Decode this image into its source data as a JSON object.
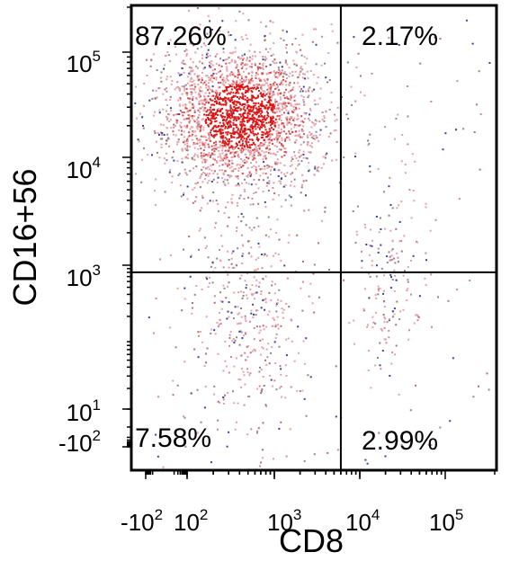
{
  "chart_data": {
    "type": "scatter",
    "title": "",
    "xlabel": "CD8",
    "ylabel": "CD16+56",
    "x_scale": "biexponential",
    "y_scale": "biexponential",
    "xlim": [
      -200,
      200000
    ],
    "ylim": [
      -200,
      200000
    ],
    "x_ticks": [
      {
        "base": "-10",
        "exp": "2",
        "value": -100
      },
      {
        "base": "10",
        "exp": "2",
        "value": 100
      },
      {
        "base": "10",
        "exp": "3",
        "value": 1000
      },
      {
        "base": "10",
        "exp": "4",
        "value": 10000
      },
      {
        "base": "10",
        "exp": "5",
        "value": 100000
      }
    ],
    "y_ticks": [
      {
        "base": "10",
        "exp": "5",
        "value": 100000
      },
      {
        "base": "10",
        "exp": "4",
        "value": 10000
      },
      {
        "base": "10",
        "exp": "3",
        "value": 1000
      },
      {
        "base": "10",
        "exp": "1",
        "value": 10
      },
      {
        "base": "-10",
        "exp": "2",
        "value": -100
      }
    ],
    "quadrant_gate": {
      "x": 6000,
      "y": 800
    },
    "quadrants": [
      {
        "position": "top-left",
        "label": "87.26%",
        "value": 87.26
      },
      {
        "position": "top-right",
        "label": "2.17%",
        "value": 2.17
      },
      {
        "position": "bottom-left",
        "label": "7.58%",
        "value": 7.58
      },
      {
        "position": "bottom-right",
        "label": "2.99%",
        "value": 2.99
      }
    ],
    "populations": [
      {
        "name": "upper-left main",
        "x_center": 400,
        "y_center": 25000,
        "count": 2400
      },
      {
        "name": "lower-left",
        "x_center": 500,
        "y_center": 250,
        "count": 420
      },
      {
        "name": "lower-right",
        "x_center": 22000,
        "y_center": 400,
        "count": 140
      },
      {
        "name": "upper-right",
        "x_center": 25000,
        "y_center": 3000,
        "count": 40
      }
    ],
    "colors": {
      "density_high": "#e01010",
      "density_low": "#e8a0a8",
      "sparse_dots": [
        "#888899",
        "#3344aa",
        "#b07070",
        "#cc8899"
      ]
    },
    "grid": false,
    "legend": "none"
  }
}
